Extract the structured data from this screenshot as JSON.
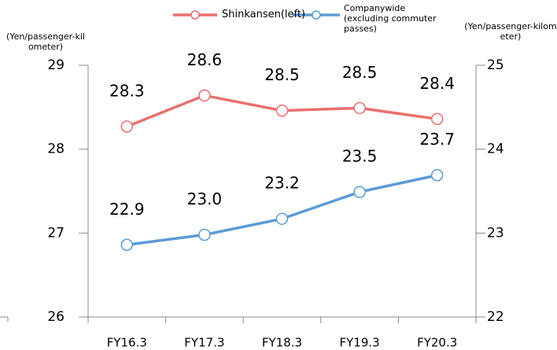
{
  "chart_data": {
    "type": "line",
    "categories": [
      "FY16.3",
      "FY17.3",
      "FY18.3",
      "FY19.3",
      "FY20.3"
    ],
    "series": [
      {
        "name": "Shinkansen(left)",
        "color": "#e8716f",
        "values": [
          28.27,
          28.64,
          28.46,
          28.49,
          28.36
        ],
        "value_labels": [
          "28.3",
          "28.6",
          "28.5",
          "28.5",
          "28.4"
        ]
      },
      {
        "name": "Companywide (excluding commuter passes)",
        "color": "#5b9bd5",
        "axis": "y2",
        "values": [
          22.86,
          22.98,
          23.17,
          23.49,
          23.69
        ],
        "value_labels": [
          "22.9",
          "23.0",
          "23.2",
          "23.5",
          "23.7"
        ]
      }
    ],
    "y_label": "(Yen/passenger-kilometer)",
    "y2_label": "(Yen/passenger-kilometer)",
    "ylim": [
      26,
      29
    ],
    "yticks": [
      26,
      27,
      28,
      29
    ],
    "y2lim": [
      22,
      25
    ],
    "y2ticks": [
      22,
      23,
      24,
      25
    ],
    "legend": "top"
  }
}
